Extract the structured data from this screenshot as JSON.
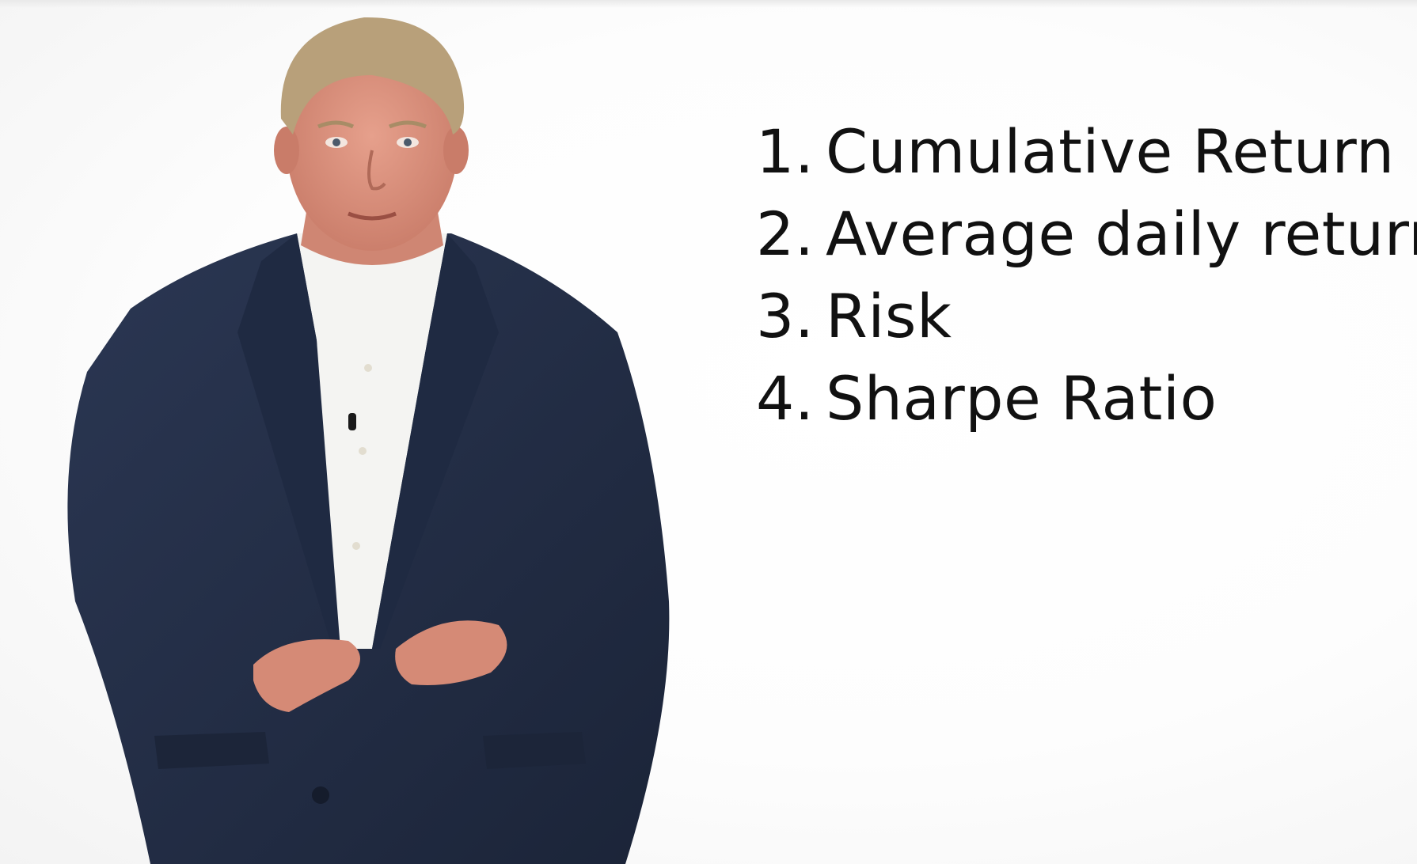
{
  "slide": {
    "topics": [
      {
        "number": "1.",
        "label": "Cumulative Return"
      },
      {
        "number": "2.",
        "label": "Average daily return"
      },
      {
        "number": "3.",
        "label": "Risk"
      },
      {
        "number": "4.",
        "label": "Sharpe Ratio"
      }
    ]
  },
  "colors": {
    "background": "#ffffff",
    "text": "#111111",
    "jacket": "#24304a",
    "shirt": "#f4f4f2",
    "skin": "#d98f7c",
    "hair": "#b8a07a"
  }
}
